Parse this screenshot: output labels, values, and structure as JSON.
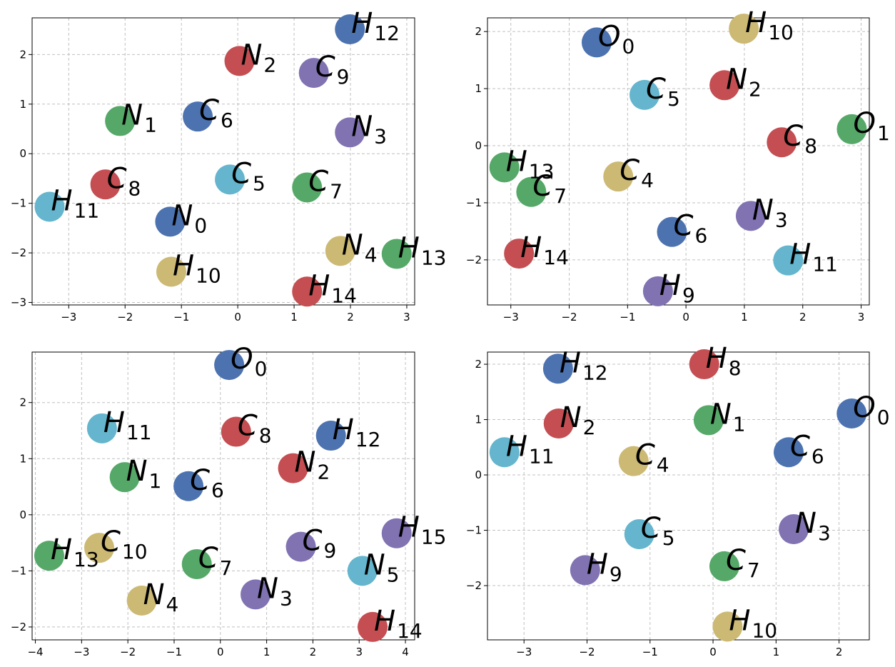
{
  "chart_data": [
    {
      "type": "scatter",
      "x": [
        -1.2,
        -2.09,
        0.03,
        1.99,
        1.82,
        -0.14,
        -0.71,
        1.23,
        -2.35,
        1.35,
        -1.18,
        -3.34,
        1.99,
        2.82,
        1.23
      ],
      "values": [
        -1.37,
        0.66,
        1.87,
        0.43,
        -1.96,
        -0.52,
        0.75,
        -0.68,
        -0.62,
        1.63,
        -2.38,
        -1.07,
        2.51,
        -2.02,
        -2.78
      ],
      "atoms": [
        "N",
        "N",
        "N",
        "N",
        "N",
        "C",
        "C",
        "C",
        "C",
        "C",
        "H",
        "H",
        "H",
        "H",
        "H"
      ],
      "subscripts": [
        0,
        1,
        2,
        3,
        4,
        5,
        6,
        7,
        8,
        9,
        10,
        11,
        12,
        13,
        14
      ],
      "colors": [
        "#4c72b0",
        "#55a868",
        "#c44e52",
        "#8172b2",
        "#ccb974",
        "#64b5cd",
        "#4c72b0",
        "#55a868",
        "#c44e52",
        "#8172b2",
        "#ccb974",
        "#64b5cd",
        "#4c72b0",
        "#55a868",
        "#c44e52"
      ],
      "xlim": [
        -3.65,
        3.14
      ],
      "ylim": [
        -3.05,
        2.74
      ],
      "xticks": [
        {
          "value": -3,
          "label": "−3"
        },
        {
          "value": -2,
          "label": "−2"
        },
        {
          "value": -1,
          "label": "−1"
        },
        0,
        1,
        2,
        3
      ],
      "yticks": [
        {
          "value": -3,
          "label": "−3"
        },
        {
          "value": -2,
          "label": "−2"
        },
        {
          "value": -1,
          "label": "−1"
        },
        0,
        1,
        2
      ],
      "grid": true
    },
    {
      "type": "scatter",
      "x": [
        -1.53,
        2.84,
        0.66,
        1.11,
        -1.16,
        -0.71,
        -0.24,
        -2.65,
        1.64,
        -0.48,
        0.99,
        1.75,
        -3.11,
        -2.86
      ],
      "values": [
        1.81,
        0.29,
        1.06,
        -1.23,
        -0.54,
        0.89,
        -1.51,
        -0.81,
        0.06,
        -2.55,
        2.05,
        -2.01,
        -0.38,
        -1.89
      ],
      "atoms": [
        "O",
        "O",
        "N",
        "N",
        "C",
        "C",
        "C",
        "C",
        "C",
        "H",
        "H",
        "H",
        "H",
        "H"
      ],
      "subscripts": [
        0,
        1,
        2,
        3,
        4,
        5,
        6,
        7,
        8,
        9,
        10,
        11,
        13,
        14
      ],
      "colors": [
        "#4c72b0",
        "#55a868",
        "#c44e52",
        "#8172b2",
        "#ccb974",
        "#64b5cd",
        "#4c72b0",
        "#55a868",
        "#c44e52",
        "#8172b2",
        "#ccb974",
        "#64b5cd",
        "#55a868",
        "#c44e52"
      ],
      "xlim": [
        -3.4,
        3.14
      ],
      "ylim": [
        -2.79,
        2.24
      ],
      "xticks": [
        {
          "value": -3,
          "label": "−3"
        },
        {
          "value": -2,
          "label": "−2"
        },
        {
          "value": -1,
          "label": "−1"
        },
        0,
        1,
        2,
        3
      ],
      "yticks": [
        {
          "value": -2,
          "label": "−2"
        },
        {
          "value": -1,
          "label": "−1"
        },
        0,
        1,
        2
      ],
      "grid": true
    },
    {
      "type": "scatter",
      "x": [
        0.19,
        -2.07,
        1.57,
        0.76,
        -1.7,
        3.07,
        -0.69,
        -0.51,
        0.34,
        1.74,
        -2.62,
        -2.56,
        2.39,
        -3.7,
        3.29,
        3.81
      ],
      "values": [
        2.67,
        0.67,
        0.83,
        -1.42,
        -1.53,
        -1.0,
        0.51,
        -0.88,
        1.48,
        -0.57,
        -0.59,
        1.54,
        1.41,
        -0.73,
        -2.0,
        -0.33
      ],
      "atoms": [
        "O",
        "N",
        "N",
        "N",
        "N",
        "N",
        "C",
        "C",
        "C",
        "C",
        "C",
        "H",
        "H",
        "H",
        "H",
        "H"
      ],
      "subscripts": [
        0,
        1,
        2,
        3,
        4,
        5,
        6,
        7,
        8,
        9,
        10,
        11,
        12,
        13,
        14,
        15
      ],
      "colors": [
        "#4c72b0",
        "#55a868",
        "#c44e52",
        "#8172b2",
        "#ccb974",
        "#64b5cd",
        "#4c72b0",
        "#55a868",
        "#c44e52",
        "#8172b2",
        "#ccb974",
        "#64b5cd",
        "#4c72b0",
        "#55a868",
        "#c44e52",
        "#8172b2"
      ],
      "xlim": [
        -4.07,
        4.2
      ],
      "ylim": [
        -2.23,
        2.9
      ],
      "xticks": [
        {
          "value": -4,
          "label": "−4"
        },
        {
          "value": -3,
          "label": "−3"
        },
        {
          "value": -2,
          "label": "−2"
        },
        {
          "value": -1,
          "label": "−1"
        },
        0,
        1,
        2,
        3,
        4
      ],
      "yticks": [
        {
          "value": -2,
          "label": "−2"
        },
        {
          "value": -1,
          "label": "−1"
        },
        0,
        1,
        2
      ],
      "grid": true
    },
    {
      "type": "scatter",
      "x": [
        2.2,
        -0.07,
        -2.45,
        1.28,
        -1.26,
        -1.17,
        1.2,
        0.18,
        -0.14,
        -2.03,
        0.23,
        -3.31,
        -2.46
      ],
      "values": [
        1.11,
        0.99,
        0.93,
        -0.98,
        0.25,
        -1.07,
        0.41,
        -1.65,
        2.0,
        -1.72,
        -2.74,
        0.41,
        1.92
      ],
      "atoms": [
        "O",
        "N",
        "N",
        "N",
        "C",
        "C",
        "C",
        "C",
        "H",
        "H",
        "H",
        "H",
        "H"
      ],
      "subscripts": [
        0,
        1,
        2,
        3,
        4,
        5,
        6,
        7,
        8,
        9,
        10,
        11,
        12
      ],
      "colors": [
        "#4c72b0",
        "#55a868",
        "#c44e52",
        "#8172b2",
        "#ccb974",
        "#64b5cd",
        "#4c72b0",
        "#55a868",
        "#c44e52",
        "#8172b2",
        "#ccb974",
        "#64b5cd",
        "#4c72b0"
      ],
      "xlim": [
        -3.58,
        2.48
      ],
      "ylim": [
        -2.98,
        2.22
      ],
      "xticks": [
        {
          "value": -3,
          "label": "−3"
        },
        {
          "value": -2,
          "label": "−2"
        },
        {
          "value": -1,
          "label": "−1"
        },
        0,
        1,
        2
      ],
      "yticks": [
        {
          "value": -2,
          "label": "−2"
        },
        {
          "value": -1,
          "label": "−1"
        },
        0,
        1,
        2
      ],
      "grid": true
    }
  ]
}
